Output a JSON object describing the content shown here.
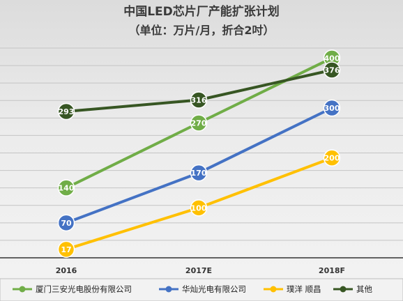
{
  "chart_data": {
    "type": "line",
    "title": "中国LED芯片厂产能扩张计划",
    "subtitle": "（单位：万片/月，折合2吋）",
    "categories": [
      "2016",
      "2017E",
      "2018F"
    ],
    "ylim": [
      0,
      420
    ],
    "grid": true,
    "legend_position": "bottom",
    "series": [
      {
        "name": "厦门三安光电股份有限公司",
        "color": "#70ad47",
        "values": [
          140,
          270,
          400
        ]
      },
      {
        "name": "华灿光电有限公司",
        "color": "#4472c4",
        "values": [
          70,
          170,
          300
        ]
      },
      {
        "name": "璞洋 顺昌",
        "color": "#ffc000",
        "values": [
          17,
          100,
          200
        ]
      },
      {
        "name": "其他",
        "color": "#375623",
        "values": [
          293,
          316,
          376
        ]
      }
    ]
  }
}
